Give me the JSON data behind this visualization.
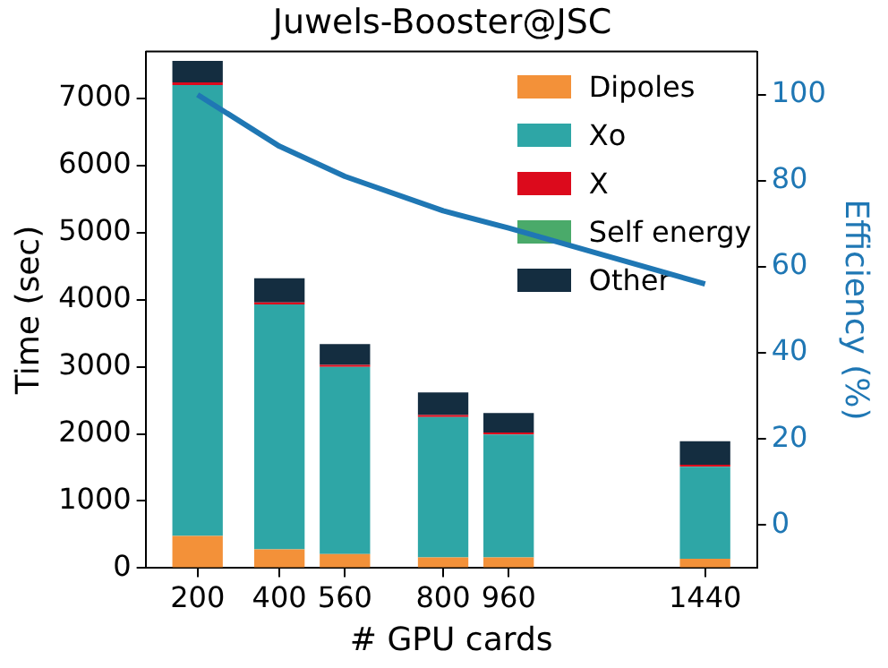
{
  "chart_data": {
    "type": "bar",
    "title": "Juwels-Booster@JSC",
    "xlabel": "# GPU cards",
    "ylabel": "Time (sec)",
    "y2label": "Efficiency (%)",
    "x": [
      200,
      400,
      560,
      800,
      960,
      1440
    ],
    "stacked": true,
    "series": [
      {
        "name": "Dipoles",
        "color": "#f39139",
        "values": [
          480,
          280,
          210,
          160,
          160,
          140
        ]
      },
      {
        "name": "Xo",
        "color": "#2ea6a6",
        "values": [
          6720,
          3650,
          2790,
          2090,
          1830,
          1370
        ]
      },
      {
        "name": "X",
        "color": "#dc0a1c",
        "values": [
          40,
          30,
          30,
          30,
          30,
          30
        ]
      },
      {
        "name": "Self energy",
        "color": "#4aaa6a",
        "values": [
          0,
          0,
          0,
          0,
          0,
          0
        ]
      },
      {
        "name": "Other",
        "color": "#142d40",
        "values": [
          320,
          360,
          310,
          340,
          290,
          350
        ]
      },
      {
        "type": "line",
        "axis": "y2",
        "color": "#1f77b4",
        "values": [
          100,
          88,
          81,
          73,
          69,
          56
        ]
      }
    ],
    "xlim": [
      73,
      1567
    ],
    "xticks": [
      200,
      400,
      560,
      800,
      960,
      1440
    ],
    "ylim": [
      0,
      7700
    ],
    "yticks": [
      0,
      1000,
      2000,
      3000,
      4000,
      5000,
      6000,
      7000
    ],
    "y2lim": [
      -10,
      110
    ],
    "y2ticks": [
      0,
      20,
      40,
      60,
      80,
      100
    ],
    "grid": false,
    "legend": "top right",
    "marker": "none",
    "line_style": "solid"
  }
}
